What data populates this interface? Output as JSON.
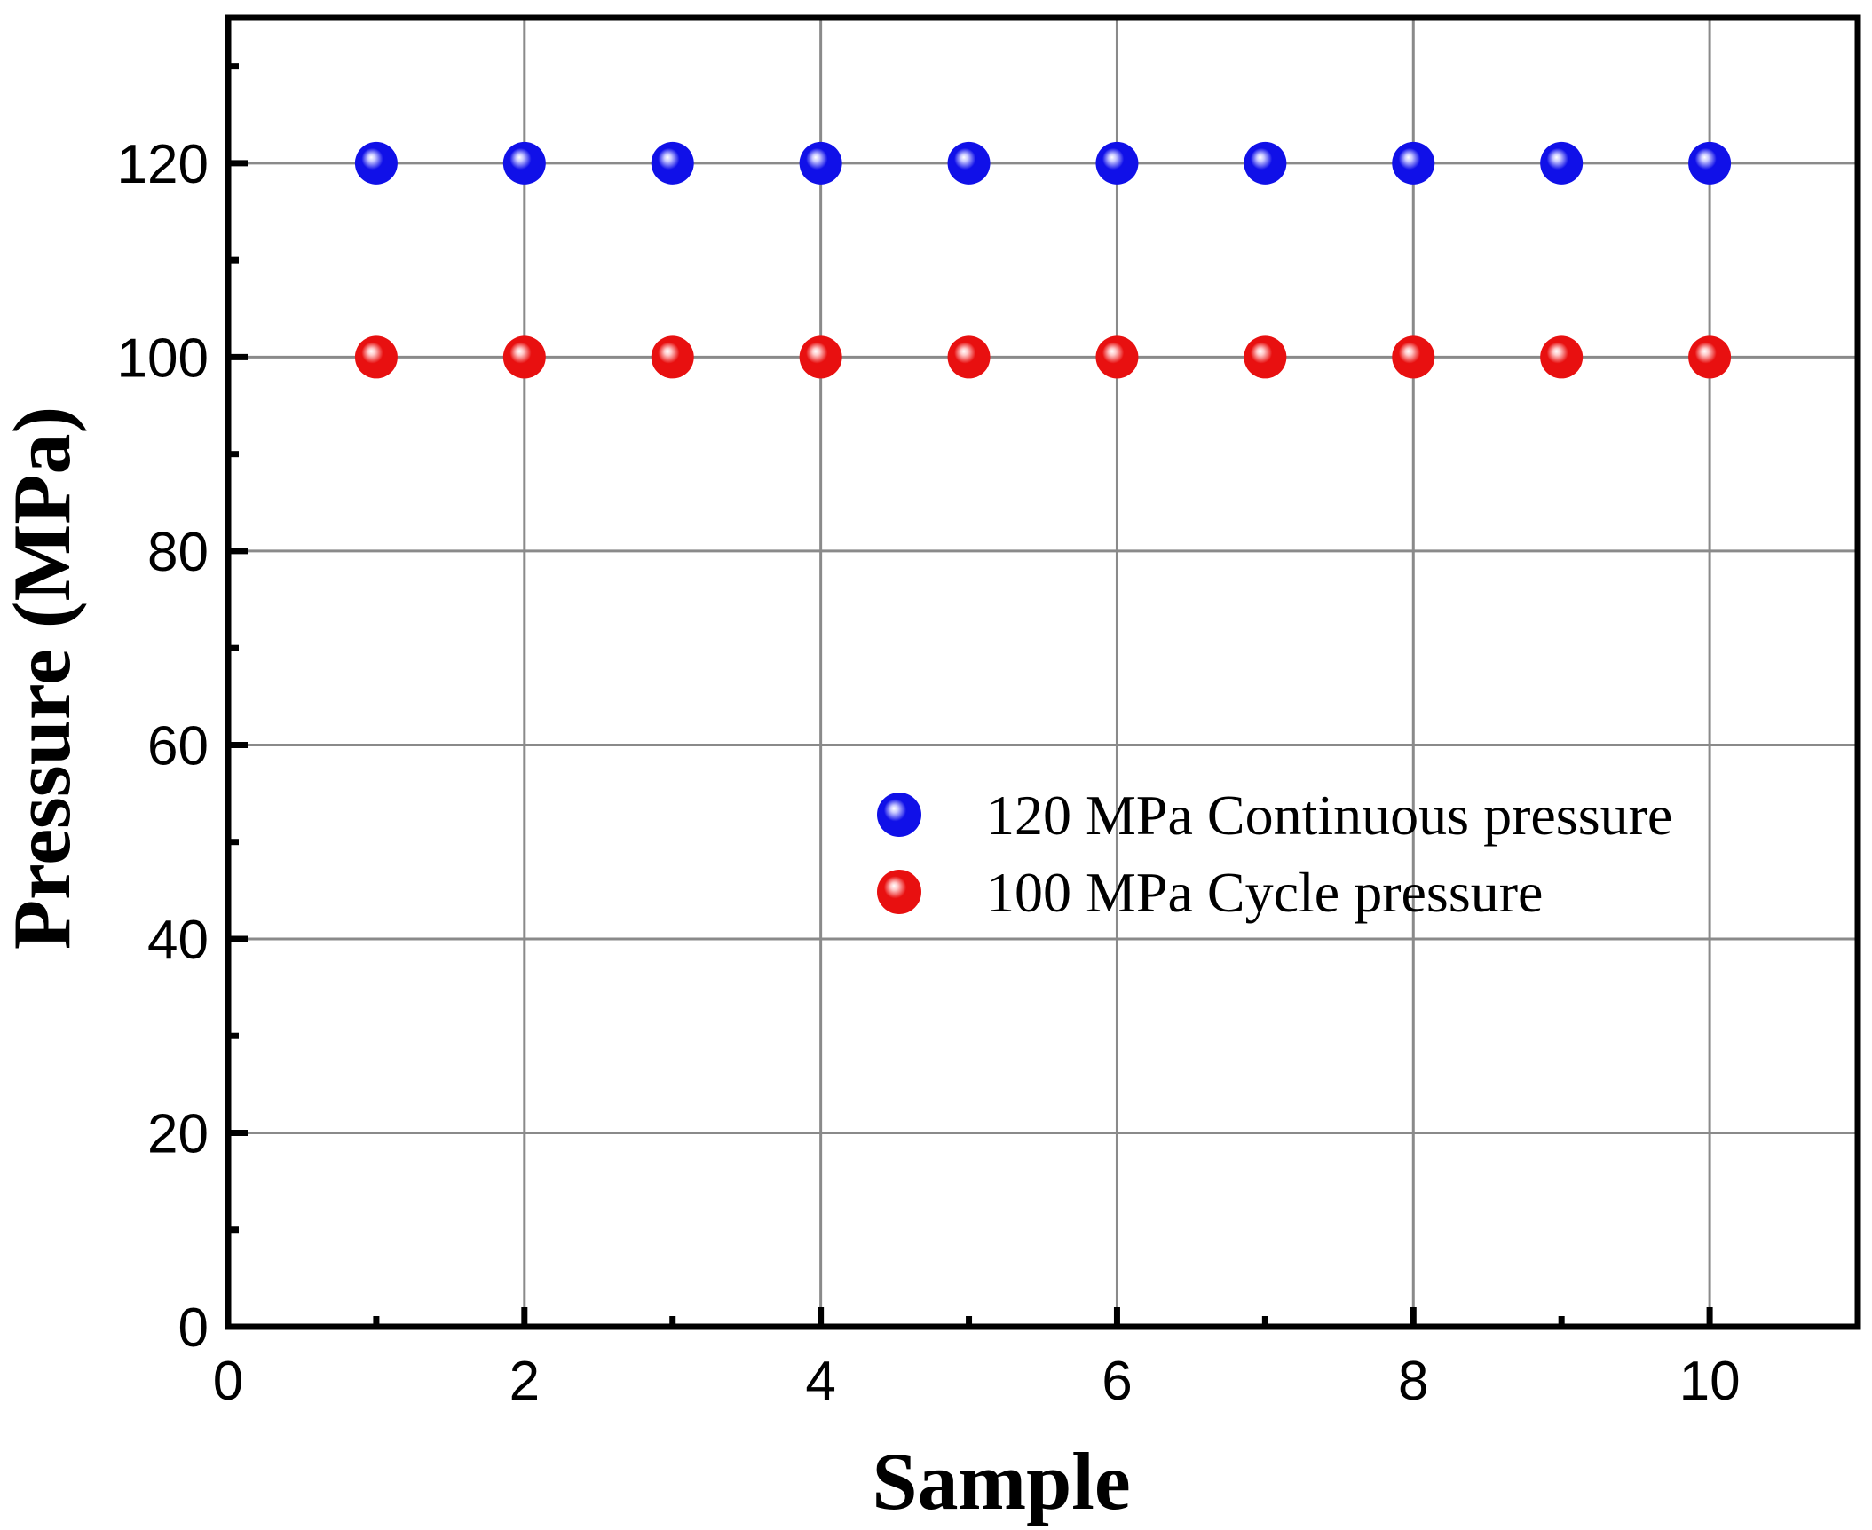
{
  "chart_data": {
    "type": "scatter",
    "title": "",
    "xlabel": "Sample",
    "ylabel": "Pressure (MPa)",
    "xlim": [
      0,
      11
    ],
    "ylim": [
      0,
      135
    ],
    "x_ticks": [
      0,
      2,
      4,
      6,
      8,
      10
    ],
    "x_minor_ticks": [
      1,
      3,
      5,
      7,
      9
    ],
    "y_ticks": [
      0,
      20,
      40,
      60,
      80,
      100,
      120
    ],
    "y_minor_ticks": [
      10,
      30,
      50,
      70,
      90,
      110,
      130
    ],
    "grid": true,
    "legend_position": "center-right",
    "x": [
      1,
      2,
      3,
      4,
      5,
      6,
      7,
      8,
      9,
      10
    ],
    "series": [
      {
        "name": "120 MPa Continuous pressure",
        "color": "#1010e8",
        "highlight": "#c8c8ff",
        "values": [
          120,
          120,
          120,
          120,
          120,
          120,
          120,
          120,
          120,
          120
        ]
      },
      {
        "name": "100 MPa Cycle pressure",
        "color": "#e81010",
        "highlight": "#ffc8c8",
        "values": [
          100,
          100,
          100,
          100,
          100,
          100,
          100,
          100,
          100,
          100
        ]
      }
    ]
  }
}
